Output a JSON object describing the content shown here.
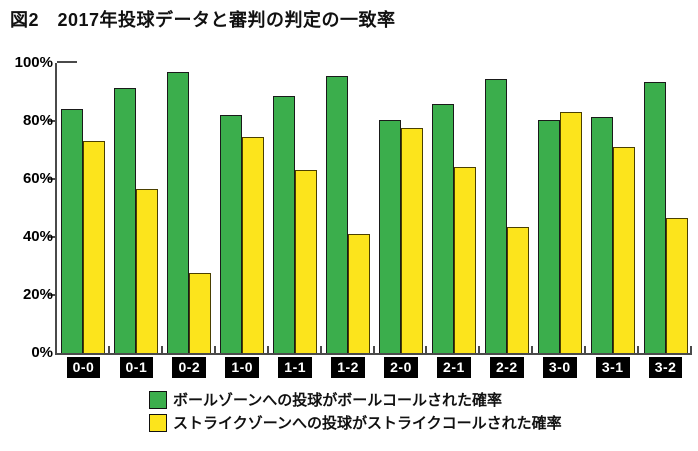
{
  "title": "図2　2017年投球データと審判の判定の一致率",
  "chart_data": {
    "type": "bar",
    "title": "図2　2017年投球データと審判の判定の一致率",
    "categories": [
      "0-0",
      "0-1",
      "0-2",
      "1-0",
      "1-1",
      "1-2",
      "2-0",
      "2-1",
      "2-2",
      "3-0",
      "3-1",
      "3-2"
    ],
    "series": [
      {
        "name": "ボールゾーンへの投球がボールコールされた確率",
        "color": "#3bae4c",
        "values": [
          84,
          91.5,
          97,
          82,
          88.5,
          95.5,
          80.5,
          86,
          94.5,
          80.5,
          81.5,
          93.5
        ]
      },
      {
        "name": "ストライクゾーンへの投球がストライクコールされた確率",
        "color": "#fce41c",
        "values": [
          73,
          56.5,
          27.5,
          74.5,
          63,
          41,
          77.5,
          64,
          43.5,
          83,
          71,
          46.5
        ]
      }
    ],
    "xlabel": "",
    "ylabel": "",
    "ylim": [
      0,
      100
    ],
    "yticks": [
      "0%",
      "20%",
      "40%",
      "60%",
      "80%",
      "100%"
    ],
    "grid": false,
    "legend_position": "bottom"
  },
  "colors": {
    "axis": "#4a4a4a",
    "bar_ball_zone": "#3bae4c",
    "bar_strike_zone": "#fce41c",
    "xlabel_box_bg": "#000000",
    "xlabel_box_text": "#ffffff"
  }
}
